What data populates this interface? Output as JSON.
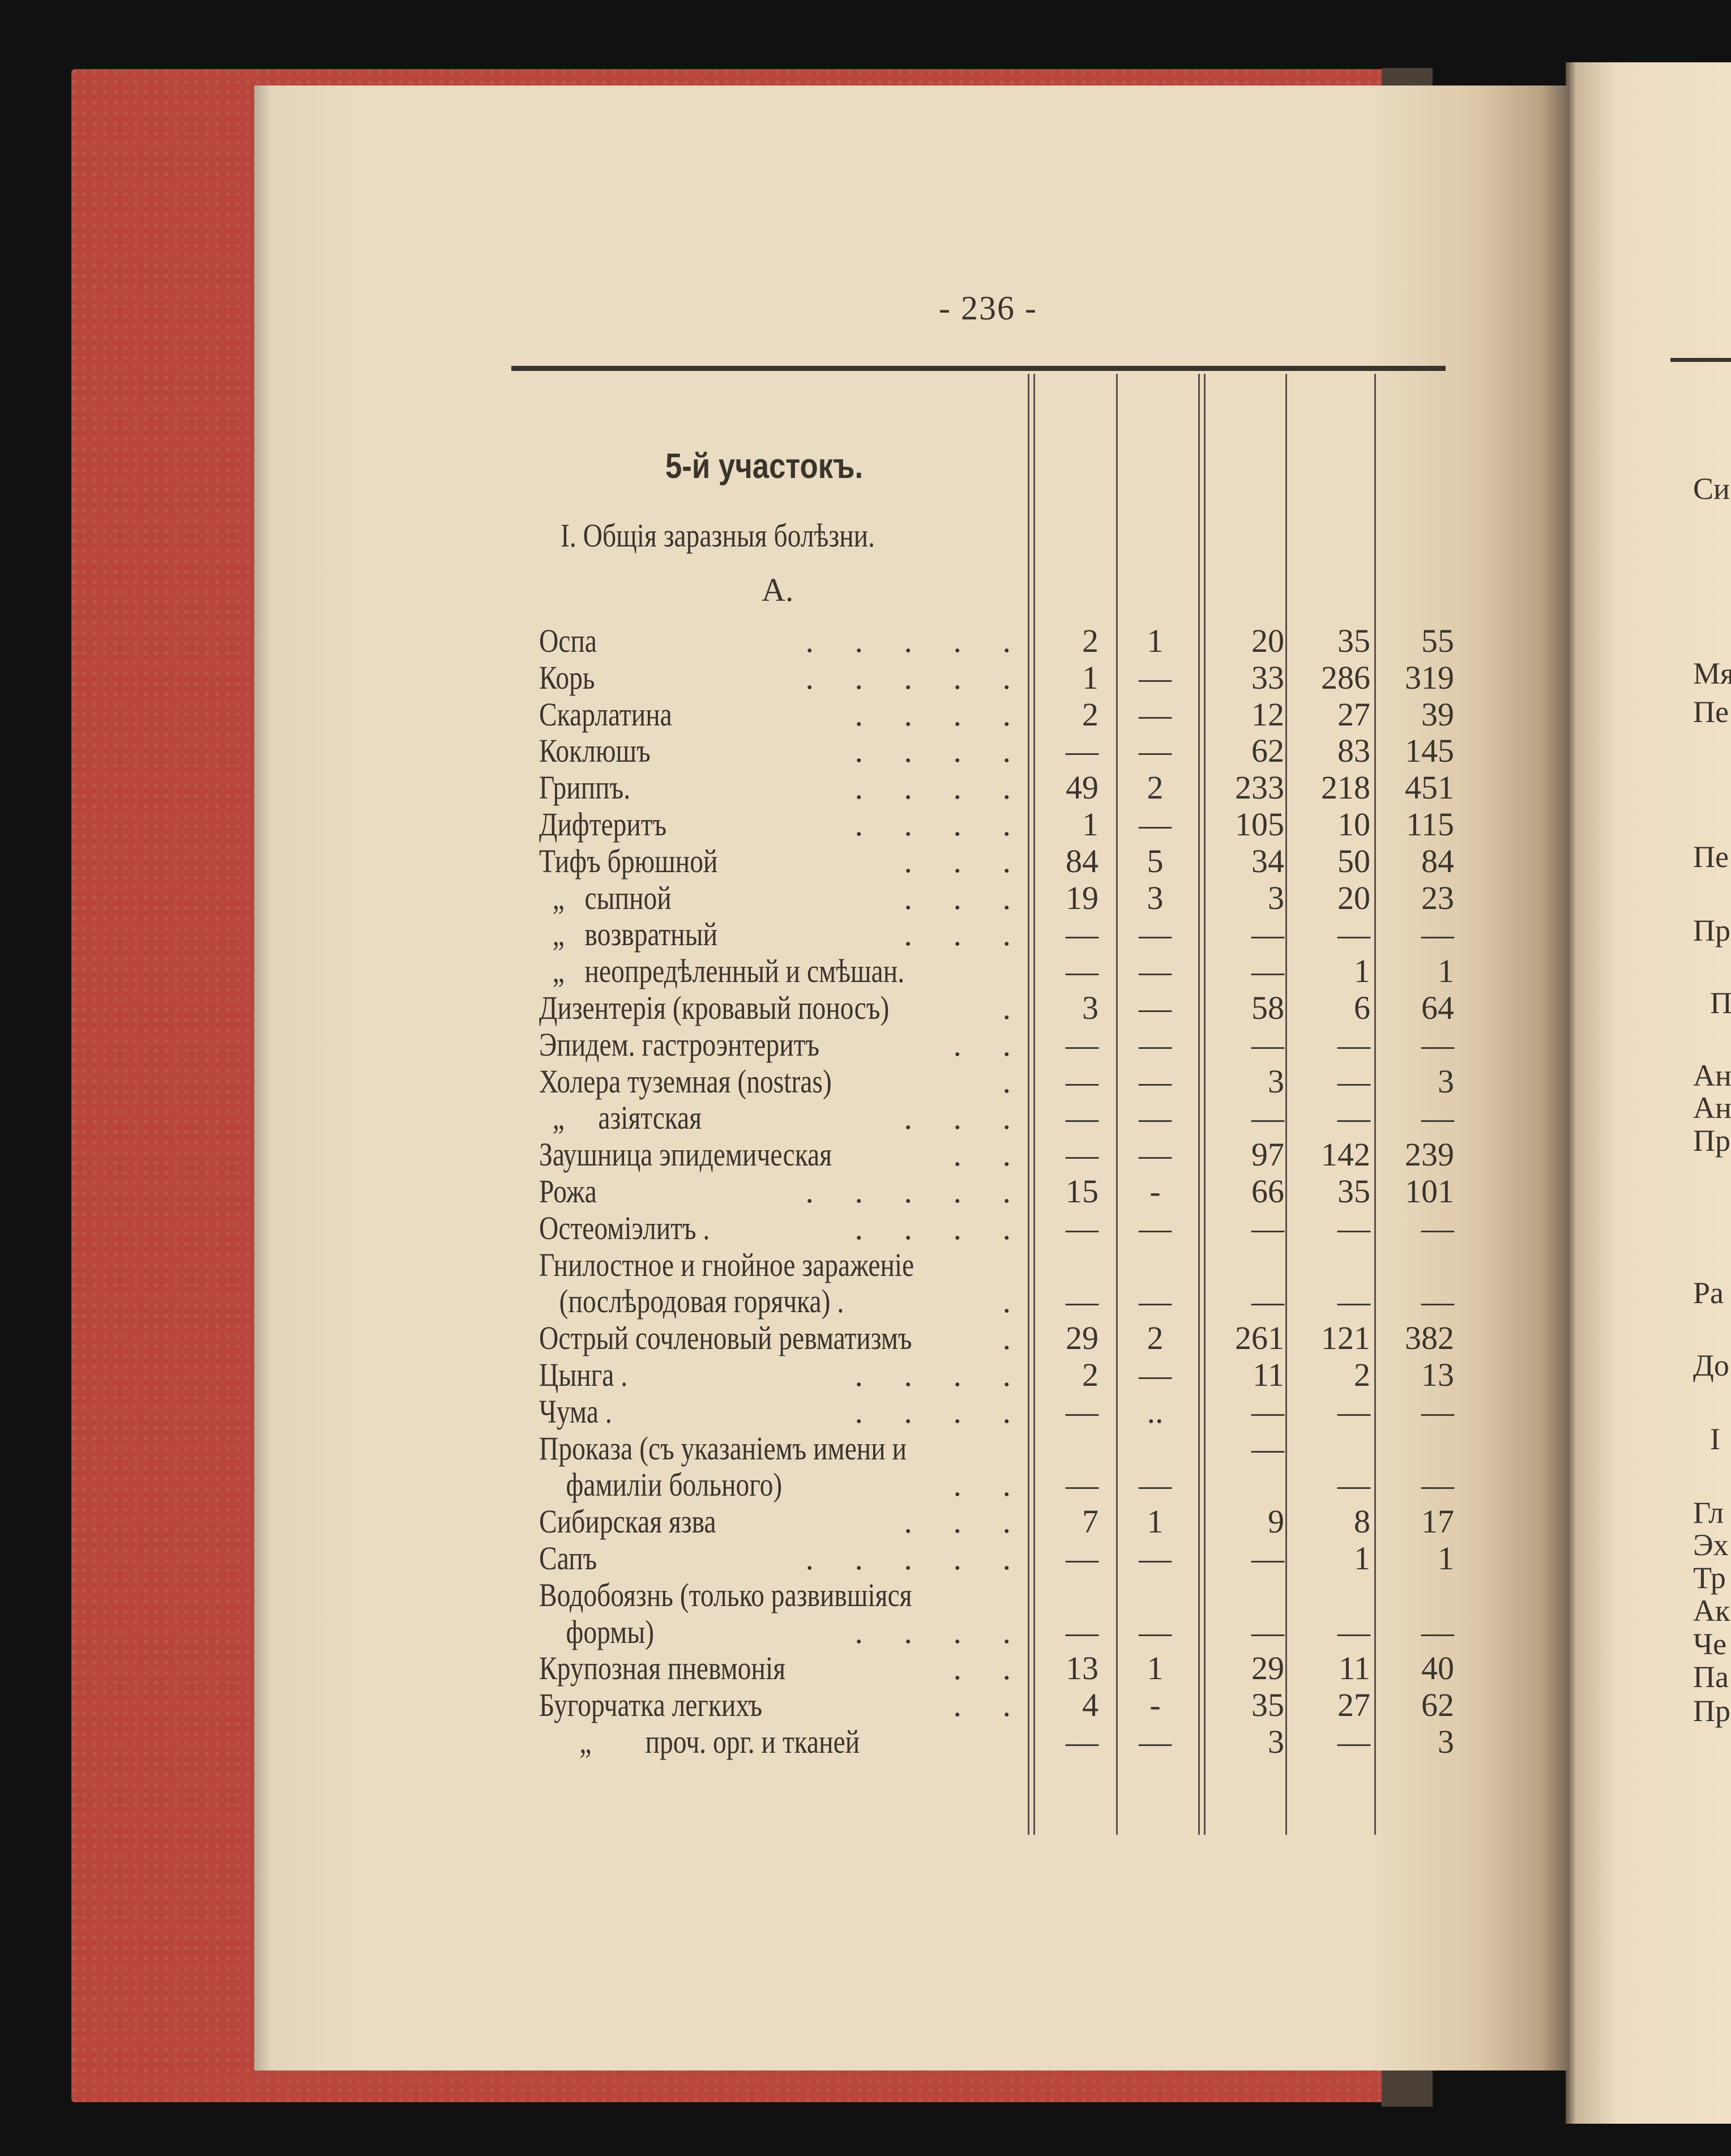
{
  "page_number": "- 236 -",
  "heading": "5-й участокъ.",
  "section": "I. Общія заразныя болѣзни.",
  "subsection": "А.",
  "rows": [
    {
      "label": "Оспа",
      "lead": ".     .     .     .     .",
      "v": [
        "2",
        "1",
        "20",
        "35",
        "55"
      ]
    },
    {
      "label": "Корь",
      "lead": ".     .     .     .     .",
      "v": [
        "1",
        "—",
        "33",
        "286",
        "319"
      ]
    },
    {
      "label": "Скарлатина",
      "lead": ".     .     .     .",
      "v": [
        "2",
        "—",
        "12",
        "27",
        "39"
      ]
    },
    {
      "label": "Коклюшъ",
      "lead": ".     .     .     .",
      "v": [
        "—",
        "—",
        "62",
        "83",
        "145"
      ]
    },
    {
      "label": "Гриппъ.",
      "lead": ".     .     .     .",
      "v": [
        "49",
        "2",
        "233",
        "218",
        "451"
      ]
    },
    {
      "label": "Дифтеритъ",
      "lead": ".     .     .     .",
      "v": [
        "1",
        "—",
        "105",
        "10",
        "115"
      ]
    },
    {
      "label": "Тифъ брюшной",
      "lead": ".     .     .",
      "v": [
        "84",
        "5",
        "34",
        "50",
        "84"
      ]
    },
    {
      "label": "  „   сыпной",
      "lead": ".     .     .",
      "v": [
        "19",
        "3",
        "3",
        "20",
        "23"
      ]
    },
    {
      "label": "  „   возвратный",
      "lead": ".     .     .",
      "v": [
        "—",
        "—",
        "—",
        "—",
        "—"
      ]
    },
    {
      "label": "  „   неопредѣленный и смѣшан.",
      "lead": "",
      "v": [
        "—",
        "—",
        "—",
        "1",
        "1"
      ]
    },
    {
      "label": "Дизентерія (кровавый поносъ)",
      "lead": ".",
      "v": [
        "3",
        "—",
        "58",
        "6",
        "64"
      ]
    },
    {
      "label": "Эпидем. гастроэнтеритъ",
      "lead": ".     .",
      "v": [
        "—",
        "—",
        "—",
        "—",
        "—"
      ]
    },
    {
      "label": "Холера туземная (nostras)",
      "lead": ".",
      "v": [
        "—",
        "—",
        "3",
        "—",
        "3"
      ]
    },
    {
      "label": "  „     азіятская",
      "lead": ".     .     .",
      "v": [
        "—",
        "—",
        "—",
        "—",
        "—"
      ]
    },
    {
      "label": "Заушница эпидемическая",
      "lead": ".     .",
      "v": [
        "—",
        "—",
        "97",
        "142",
        "239"
      ]
    },
    {
      "label": "Рожа",
      "lead": ".     .     .     .     .",
      "v": [
        "15",
        "-",
        "66",
        "35",
        "101"
      ]
    },
    {
      "label": "Остеоміэлитъ .",
      "lead": ".     .     .     .",
      "v": [
        "—",
        "—",
        "—",
        "—",
        "—"
      ]
    },
    {
      "label": "Гнилостное и гнойное зараженіе",
      "lead": "",
      "v": [
        "",
        "",
        "",
        "",
        ""
      ]
    },
    {
      "label": "   (послѣродовая горячка) .",
      "lead": ".",
      "v": [
        "—",
        "—",
        "—",
        "—",
        "—"
      ]
    },
    {
      "label": "Острый сочленовый ревматизмъ",
      "lead": ".",
      "v": [
        "29",
        "2",
        "261",
        "121",
        "382"
      ]
    },
    {
      "label": "Цынга .",
      "lead": ".     .     .     .",
      "v": [
        "2",
        "—",
        "11",
        "2",
        "13"
      ]
    },
    {
      "label": "Чума .",
      "lead": ".     .     .     .",
      "v": [
        "—",
        "..",
        "—",
        "—",
        "—"
      ]
    },
    {
      "label": "Проказа (съ указаніемъ имени и",
      "lead": "",
      "v": [
        "",
        "",
        "—",
        "",
        ""
      ]
    },
    {
      "label": "    фамиліи больного)",
      "lead": ".     .",
      "v": [
        "—",
        "—",
        "",
        "—",
        "—"
      ]
    },
    {
      "label": "Сибирская язва",
      "lead": ".     .     .",
      "v": [
        "7",
        "1",
        "9",
        "8",
        "17"
      ]
    },
    {
      "label": "Сапъ",
      "lead": ".     .     .     .     .",
      "v": [
        "—",
        "—",
        "—",
        "1",
        "1"
      ]
    },
    {
      "label": "Водобоязнь (только развившіяся",
      "lead": "",
      "v": [
        "",
        "",
        "",
        "",
        ""
      ]
    },
    {
      "label": "    формы)",
      "lead": ".     .     .     .",
      "v": [
        "—",
        "—",
        "—",
        "—",
        "—"
      ]
    },
    {
      "label": "Крупозная пневмонія",
      "lead": ".     .",
      "v": [
        "13",
        "1",
        "29",
        "11",
        "40"
      ]
    },
    {
      "label": "Бугорчатка легкихъ",
      "lead": ".     .",
      "v": [
        "4",
        "-",
        "35",
        "27",
        "62"
      ]
    },
    {
      "label": "      „        проч. орг. и тканей",
      "lead": "",
      "v": [
        "—",
        "—",
        "3",
        "—",
        "3"
      ]
    }
  ],
  "right_page_fragments": [
    "Сис",
    "Мя",
    "Пе",
    "Пе",
    "Пр",
    "П",
    "Ан",
    "Ан",
    "Пр",
    "Ра",
    "До",
    "I",
    "Гл",
    "Эх",
    "Тр",
    "Ак",
    "Че",
    "Па",
    "Пр"
  ],
  "colors": {
    "paper": "#eadbc1",
    "ink": "#3a342c",
    "cover": "#b8463c"
  }
}
